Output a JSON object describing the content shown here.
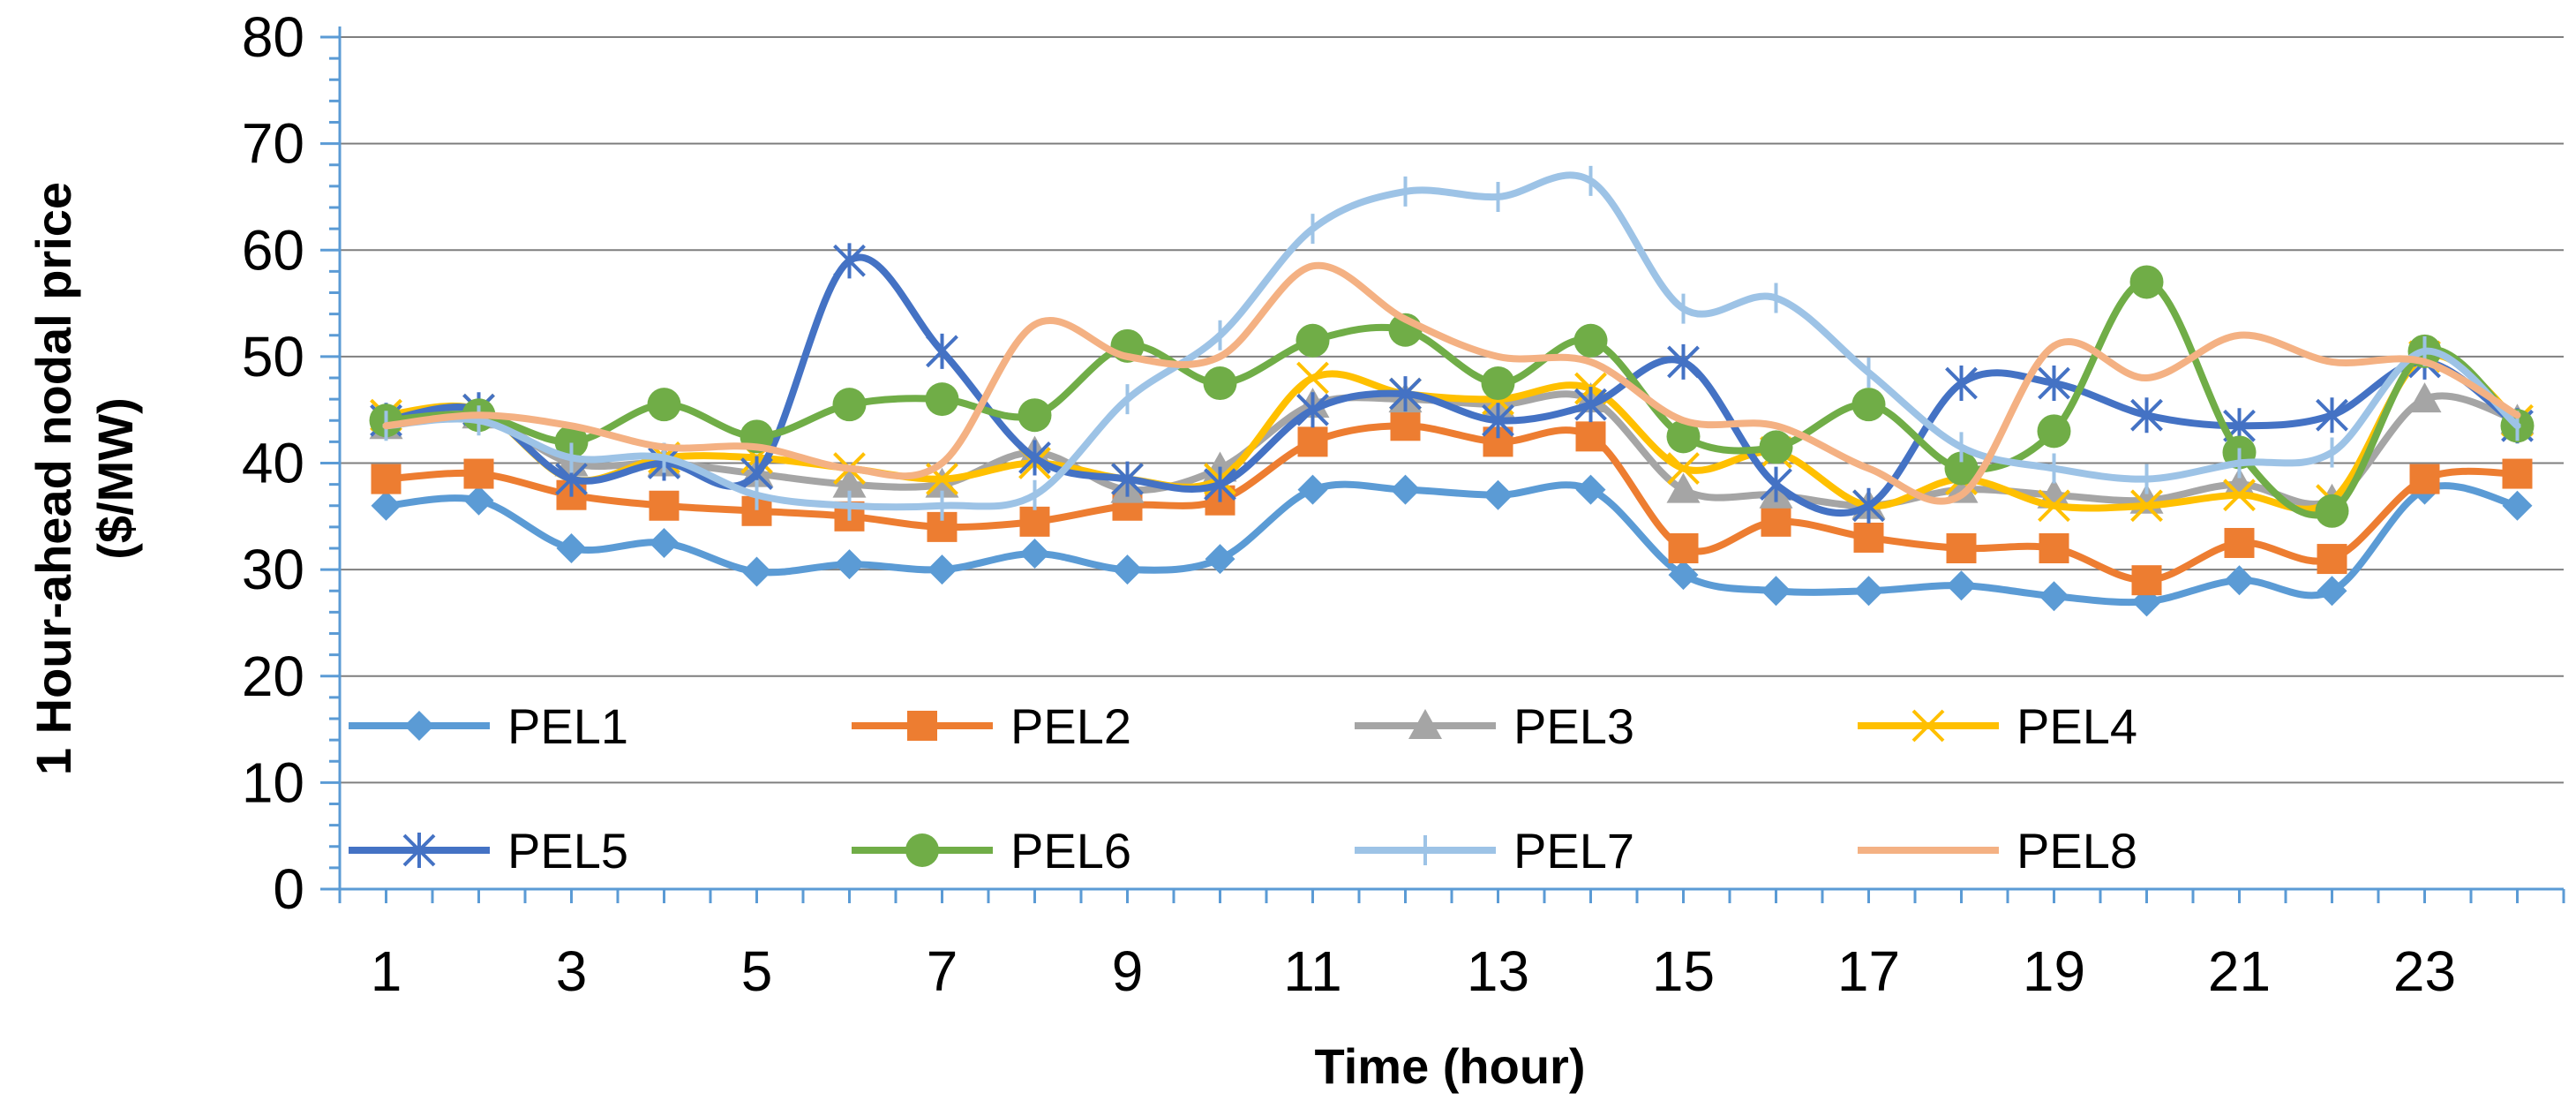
{
  "chart_data": {
    "type": "line",
    "title": "",
    "xlabel": "Time (hour)",
    "ylabel_line1": "1 Hour-ahead nodal price",
    "ylabel_line2": "($/MW)",
    "x": [
      1,
      2,
      3,
      4,
      5,
      6,
      7,
      8,
      9,
      10,
      11,
      12,
      13,
      14,
      15,
      16,
      17,
      18,
      19,
      20,
      21,
      22,
      23,
      24
    ],
    "x_tick_labels": [
      "1",
      "3",
      "5",
      "7",
      "9",
      "11",
      "13",
      "15",
      "17",
      "19",
      "21",
      "23"
    ],
    "ylim": [
      0,
      80
    ],
    "y_ticks": [
      0,
      10,
      20,
      30,
      40,
      50,
      60,
      70,
      80
    ],
    "grid": true,
    "legend_position": "inside-bottom",
    "series": [
      {
        "name": "PEL1",
        "color": "#5b9bd5",
        "marker": "diamond",
        "values": [
          36,
          36.5,
          32,
          32.5,
          29.8,
          30.5,
          30,
          31.5,
          30,
          31,
          37.5,
          37.5,
          37,
          37.5,
          29.5,
          28,
          28,
          28.5,
          27.5,
          27,
          29,
          28,
          37.5,
          36
        ]
      },
      {
        "name": "PEL2",
        "color": "#ed7d31",
        "marker": "square",
        "values": [
          38.5,
          39,
          37,
          36,
          35.5,
          35,
          34,
          34.5,
          36,
          36.5,
          42,
          43.5,
          42,
          42.5,
          32,
          34.5,
          33,
          32,
          32,
          29,
          32.5,
          31,
          38.5,
          39
        ]
      },
      {
        "name": "PEL3",
        "color": "#a5a5a5",
        "marker": "triangle",
        "values": [
          43.5,
          44.5,
          40,
          40,
          39,
          38,
          38,
          41,
          37.5,
          39.5,
          45.5,
          46,
          45.5,
          46,
          37.5,
          37,
          36,
          37.5,
          37,
          36.5,
          38,
          36.5,
          46,
          44
        ]
      },
      {
        "name": "PEL4",
        "color": "#ffc000",
        "marker": "x",
        "values": [
          44.5,
          45,
          38.5,
          40.5,
          40.5,
          39.5,
          38.5,
          40,
          38.5,
          38.5,
          48,
          46.5,
          46,
          47,
          39.5,
          41,
          36,
          38.5,
          36,
          36,
          37,
          36.5,
          50,
          44
        ]
      },
      {
        "name": "PEL5",
        "color": "#4472c4",
        "marker": "star",
        "values": [
          44,
          45,
          38.5,
          40,
          39,
          59,
          50.5,
          40.5,
          38.5,
          38,
          45,
          46.5,
          44,
          45.5,
          49.5,
          38,
          36,
          47.5,
          47.5,
          44.5,
          43.5,
          44.5,
          49.5,
          43.5
        ]
      },
      {
        "name": "PEL6",
        "color": "#70ad47",
        "marker": "circle",
        "values": [
          44,
          44.5,
          42,
          45.5,
          42.5,
          45.5,
          46,
          44.5,
          51,
          47.5,
          51.5,
          52.5,
          47.5,
          51.5,
          42.5,
          41.5,
          45.5,
          39.5,
          43,
          57,
          41,
          35.5,
          50.5,
          43.5
        ]
      },
      {
        "name": "PEL7",
        "color": "#9dc3e6",
        "marker": "plus",
        "values": [
          43.5,
          44,
          40.5,
          40.5,
          37,
          36,
          36,
          37,
          46,
          52,
          62,
          65.5,
          65,
          66.5,
          54.5,
          55.5,
          48.5,
          41.5,
          39.5,
          38.5,
          40,
          41,
          50.5,
          43.5
        ]
      },
      {
        "name": "PEL8",
        "color": "#f4b183",
        "marker": "none",
        "values": [
          43.5,
          44.5,
          43.5,
          41.5,
          41.5,
          39.5,
          40,
          53,
          50,
          50,
          58.5,
          53.5,
          50,
          49.5,
          44,
          43.5,
          39.5,
          37,
          51,
          48,
          52,
          49.5,
          49.5,
          44.5
        ]
      }
    ]
  }
}
